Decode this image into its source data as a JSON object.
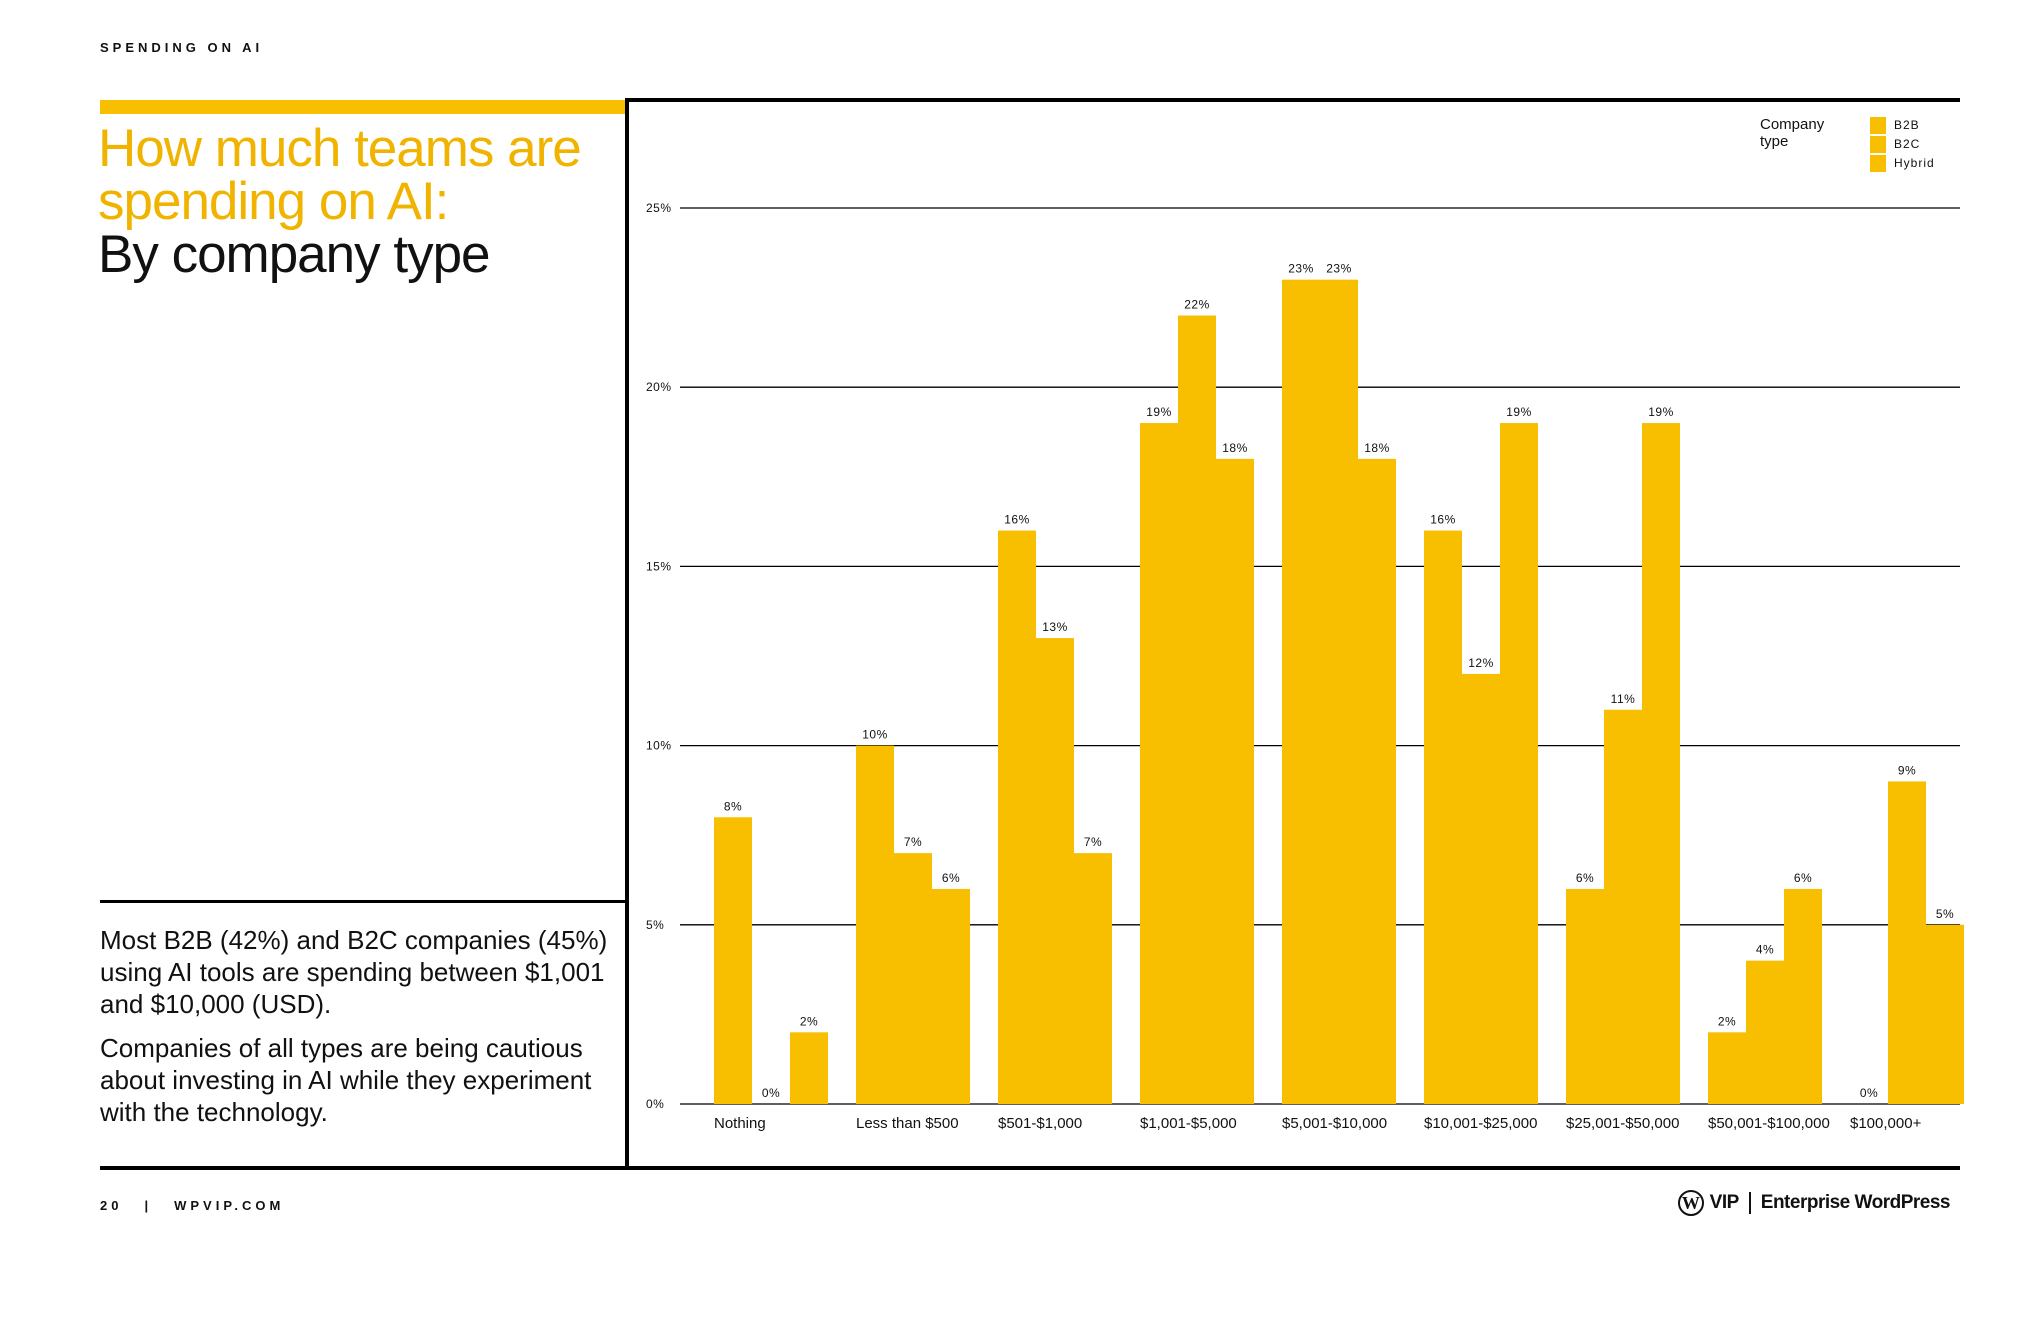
{
  "header": {
    "kicker": "SPENDING ON AI"
  },
  "title": {
    "highlight": "How much teams are spending on AI:",
    "subtitle": "By company type"
  },
  "description": {
    "p1": "Most B2B (42%) and B2C companies (45%) using AI tools are spending between $1,001 and $10,000 (USD).",
    "p2": "Companies of all types are being cautious about investing in AI while they experiment with the technology."
  },
  "footer": {
    "page": "20",
    "separator": "|",
    "site": "WPVIP.COM"
  },
  "brand": {
    "vip": "VIP",
    "name": "Enterprise WordPress"
  },
  "legend": {
    "title": "Company type",
    "items": [
      "B2B",
      "B2C",
      "Hybrid"
    ]
  },
  "colors": {
    "bar": "#F8BE00",
    "title_highlight": "#F0B400"
  },
  "chart_data": {
    "type": "bar",
    "title": "",
    "xlabel": "",
    "ylabel": "",
    "ylim": [
      0,
      25
    ],
    "yticks": [
      0,
      5,
      10,
      15,
      20,
      25
    ],
    "ytick_labels": [
      "0%",
      "5%",
      "10%",
      "15%",
      "20%",
      "25%"
    ],
    "grid": true,
    "legend_position": "top-right",
    "categories": [
      "Nothing",
      "Less than $500",
      "$501-$1,000",
      "$1,001-$5,000",
      "$5,001-$10,000",
      "$10,001-$25,000",
      "$25,001-$50,000",
      "$50,001-$100,000",
      "$100,000+"
    ],
    "series": [
      {
        "name": "B2B",
        "values": [
          8,
          10,
          16,
          19,
          23,
          16,
          6,
          2,
          0
        ],
        "labels": [
          "8%",
          "10%",
          "16%",
          "19%",
          "23%",
          "16%",
          "6%",
          "2%",
          "0%"
        ]
      },
      {
        "name": "B2C",
        "values": [
          0,
          7,
          13,
          22,
          23,
          12,
          11,
          4,
          9
        ],
        "labels": [
          "0%",
          "7%",
          "13%",
          "22%",
          "23%",
          "12%",
          "11%",
          "4%",
          "9%"
        ]
      },
      {
        "name": "Hybrid",
        "values": [
          2,
          6,
          7,
          18,
          18,
          19,
          19,
          6,
          5
        ],
        "labels": [
          "2%",
          "6%",
          "7%",
          "18%",
          "18%",
          "19%",
          "19%",
          "6%",
          "5%"
        ]
      }
    ]
  }
}
